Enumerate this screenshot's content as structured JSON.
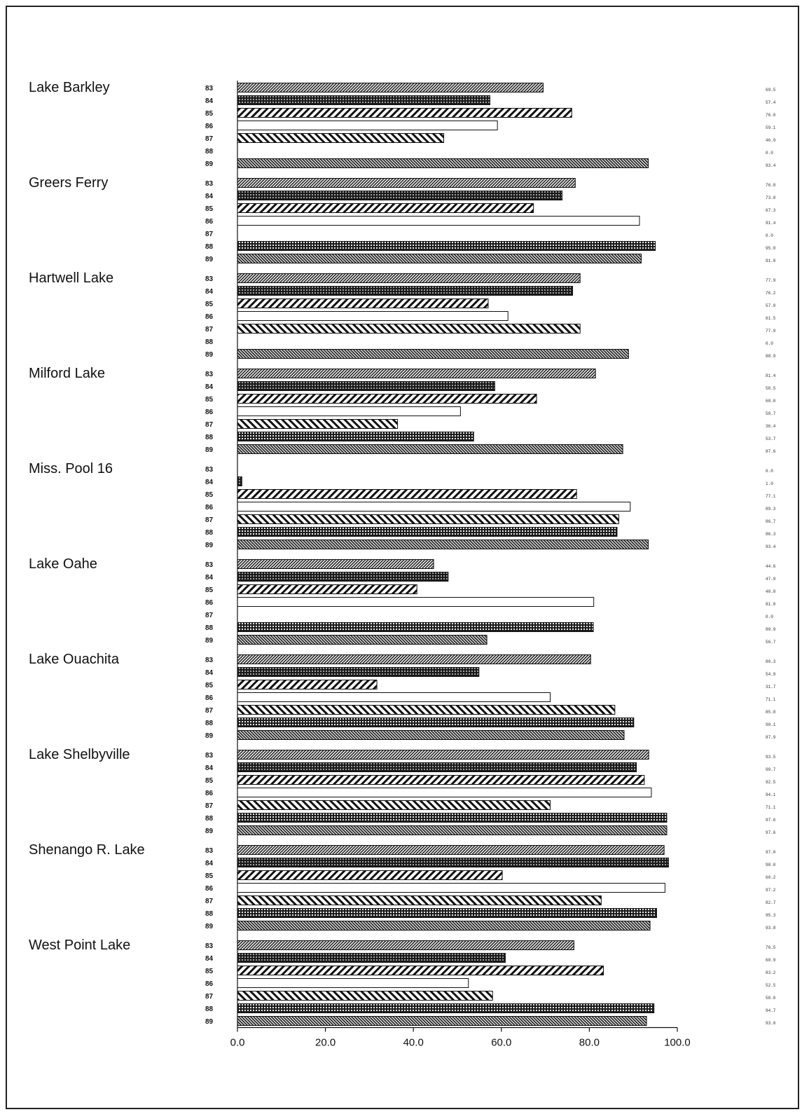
{
  "chart_data": {
    "type": "bar",
    "orientation": "horizontal",
    "title": "",
    "xlabel": "",
    "ylabel": "",
    "xlim": [
      0,
      100
    ],
    "xticks": [
      "0.0",
      "20.0",
      "40.0",
      "60.0",
      "80.0",
      "100.0"
    ],
    "years": [
      "83",
      "84",
      "85",
      "86",
      "87",
      "88",
      "89"
    ],
    "groups": [
      {
        "name": "Lake Barkley",
        "values": [
          69.5,
          57.4,
          76.0,
          59.1,
          46.9,
          0.0,
          93.4
        ],
        "labels": [
          "69.5",
          "57.4",
          "76.0",
          "59.1",
          "46.9",
          "0.0",
          "93.4"
        ]
      },
      {
        "name": "Greers Ferry",
        "values": [
          76.8,
          73.8,
          67.3,
          91.4,
          0.0,
          95.0,
          91.8
        ],
        "labels": [
          "76.8",
          "73.8",
          "67.3",
          "91.4",
          "0.0",
          "95.0",
          "91.8"
        ]
      },
      {
        "name": "Hartwell Lake",
        "values": [
          77.9,
          76.2,
          57.0,
          61.5,
          77.9,
          0.0,
          88.9
        ],
        "labels": [
          "77.9",
          "76.2",
          "57.0",
          "61.5",
          "77.9",
          "0.0",
          "88.9"
        ]
      },
      {
        "name": "Milford Lake",
        "values": [
          81.4,
          58.5,
          68.0,
          50.7,
          36.4,
          53.7,
          87.6
        ],
        "labels": [
          "81.4",
          "58.5",
          "68.0",
          "50.7",
          "36.4",
          "53.7",
          "87.6"
        ]
      },
      {
        "name": "Miss. Pool 16",
        "values": [
          0.0,
          1.0,
          77.1,
          89.3,
          86.7,
          86.3,
          93.4
        ],
        "labels": [
          "0.0",
          "1.0",
          "77.1",
          "89.3",
          "86.7",
          "86.3",
          "93.4"
        ]
      },
      {
        "name": "Lake Oahe",
        "values": [
          44.6,
          47.9,
          40.8,
          81.0,
          0.0,
          80.9,
          56.7
        ],
        "labels": [
          "44.6",
          "47.9",
          "40.8",
          "81.0",
          "0.0",
          "80.9",
          "56.7"
        ]
      },
      {
        "name": "Lake Ouachita",
        "values": [
          80.3,
          54.9,
          31.7,
          71.1,
          85.8,
          90.1,
          87.9
        ],
        "labels": [
          "80.3",
          "54.9",
          "31.7",
          "71.1",
          "85.8",
          "90.1",
          "87.9"
        ]
      },
      {
        "name": "Lake Shelbyville",
        "values": [
          93.5,
          90.7,
          92.5,
          94.1,
          71.1,
          97.6,
          97.6
        ],
        "labels": [
          "93.5",
          "90.7",
          "92.5",
          "94.1",
          "71.1",
          "97.6",
          "97.6"
        ]
      },
      {
        "name": "Shenango R. Lake",
        "values": [
          97.0,
          98.0,
          60.2,
          97.2,
          82.7,
          95.3,
          93.8
        ],
        "labels": [
          "97.0",
          "98.0",
          "60.2",
          "97.2",
          "82.7",
          "95.3",
          "93.8"
        ]
      },
      {
        "name": "West Point Lake",
        "values": [
          76.5,
          60.9,
          83.2,
          52.5,
          58.0,
          94.7,
          93.0
        ],
        "labels": [
          "76.5",
          "60.9",
          "83.2",
          "52.5",
          "58.0",
          "94.7",
          "93.0"
        ]
      }
    ],
    "grid": false,
    "legend": "none"
  }
}
